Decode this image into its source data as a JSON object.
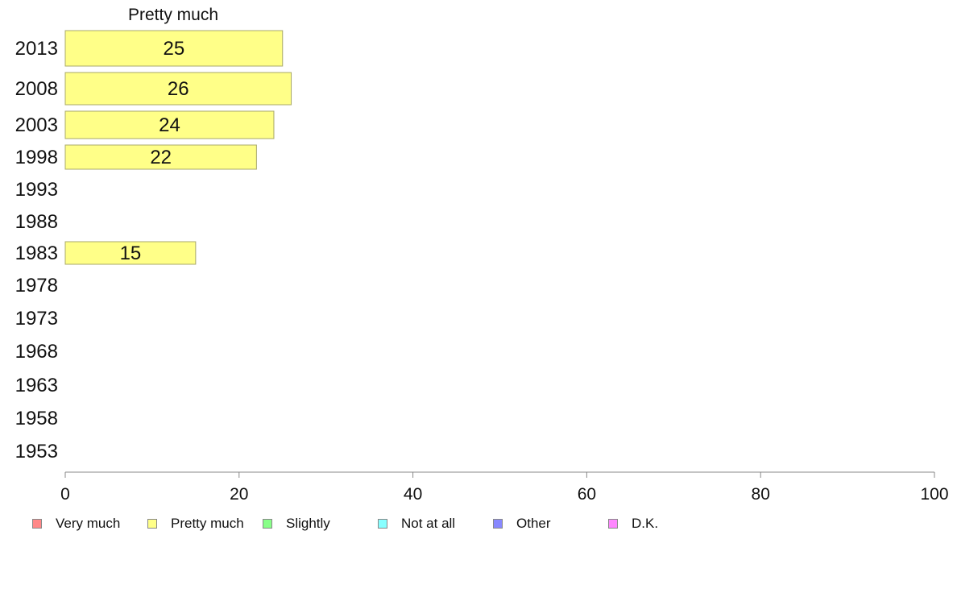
{
  "chart_data": {
    "type": "bar",
    "orientation": "horizontal",
    "title": "Pretty much",
    "categories": [
      "2013",
      "2008",
      "2003",
      "1998",
      "1993",
      "1988",
      "1983",
      "1978",
      "1973",
      "1968",
      "1963",
      "1958",
      "1953"
    ],
    "series": [
      {
        "name": "Pretty much",
        "color": "#ffff88",
        "values": [
          25,
          26,
          24,
          22,
          null,
          null,
          15,
          null,
          null,
          null,
          null,
          null,
          null
        ]
      }
    ],
    "xlim": [
      0,
      100
    ],
    "xticks": [
      0,
      20,
      40,
      60,
      80,
      100
    ],
    "grid": false,
    "legend": {
      "placement": "bottom",
      "items": [
        {
          "label": "Very much",
          "color": "#ff8888"
        },
        {
          "label": "Pretty much",
          "color": "#ffff88"
        },
        {
          "label": "Slightly",
          "color": "#88ff88"
        },
        {
          "label": "Not at all",
          "color": "#88ffff"
        },
        {
          "label": "Other",
          "color": "#8888ff"
        },
        {
          "label": "D.K.",
          "color": "#ff88ff"
        }
      ]
    }
  }
}
